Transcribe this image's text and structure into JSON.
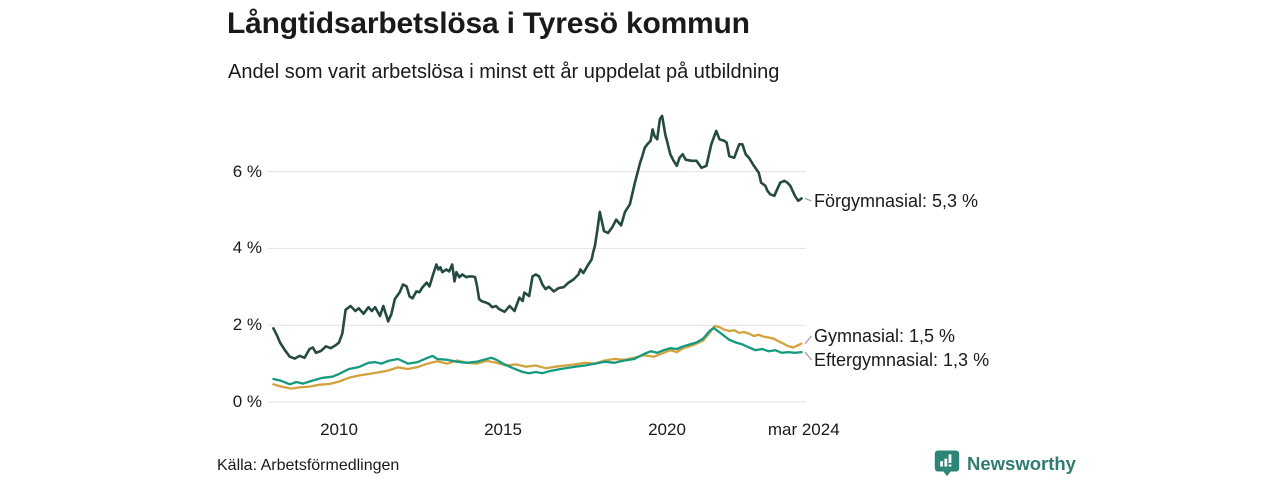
{
  "header": {
    "title": "Långtidsarbetslösa i Tyresö kommun",
    "subtitle": "Andel som varit arbetslösa i minst ett år uppdelat på utbildning"
  },
  "footer": {
    "source": "Källa: Arbetsförmedlingen",
    "brand": "Newsworthy"
  },
  "colors": {
    "forgymnasial": "#254a42",
    "gymnasial": "#d3a23e",
    "eftergymnasial": "#149a80",
    "gridline": "#e2e2e2",
    "connector": "#999999",
    "brand": "#2d8578"
  },
  "chart_data": {
    "type": "line",
    "title": "Långtidsarbetslösa i Tyresö kommun",
    "subtitle": "Andel som varit arbetslösa i minst ett år uppdelat på utbildning",
    "unit": "%",
    "x_range_years": [
      2008,
      2024.25
    ],
    "ylim": [
      0,
      7.6
    ],
    "grid": "horizontal",
    "legend_position": "right-end-labels",
    "y_axis": {
      "ticks": [
        {
          "value": 0,
          "label": "0 %"
        },
        {
          "value": 2,
          "label": "2 %"
        },
        {
          "value": 4,
          "label": "4 %"
        },
        {
          "value": 6,
          "label": "6 %"
        }
      ]
    },
    "x_axis": {
      "ticks": [
        {
          "year": 2010,
          "label": "2010"
        },
        {
          "year": 2015,
          "label": "2015"
        },
        {
          "year": 2020,
          "label": "2020"
        },
        {
          "year": 2024.17,
          "label": "mar 2024"
        }
      ]
    },
    "series": [
      {
        "name": "Förgymnasial",
        "label": "Förgymnasial: 5,3 %",
        "last_value": 5.3,
        "color_key": "forgymnasial",
        "points": [
          [
            2008.0,
            1.92
          ],
          [
            2008.1,
            1.75
          ],
          [
            2008.2,
            1.55
          ],
          [
            2008.35,
            1.35
          ],
          [
            2008.5,
            1.18
          ],
          [
            2008.65,
            1.13
          ],
          [
            2008.8,
            1.2
          ],
          [
            2008.95,
            1.15
          ],
          [
            2009.1,
            1.38
          ],
          [
            2009.2,
            1.42
          ],
          [
            2009.3,
            1.28
          ],
          [
            2009.45,
            1.33
          ],
          [
            2009.6,
            1.45
          ],
          [
            2009.75,
            1.4
          ],
          [
            2009.9,
            1.48
          ],
          [
            2010.0,
            1.55
          ],
          [
            2010.1,
            1.78
          ],
          [
            2010.2,
            2.4
          ],
          [
            2010.35,
            2.5
          ],
          [
            2010.5,
            2.37
          ],
          [
            2010.6,
            2.44
          ],
          [
            2010.75,
            2.3
          ],
          [
            2010.9,
            2.47
          ],
          [
            2011.0,
            2.37
          ],
          [
            2011.1,
            2.47
          ],
          [
            2011.25,
            2.24
          ],
          [
            2011.35,
            2.5
          ],
          [
            2011.5,
            2.1
          ],
          [
            2011.6,
            2.3
          ],
          [
            2011.7,
            2.68
          ],
          [
            2011.85,
            2.86
          ],
          [
            2011.95,
            3.06
          ],
          [
            2012.06,
            3.01
          ],
          [
            2012.15,
            2.75
          ],
          [
            2012.24,
            2.7
          ],
          [
            2012.36,
            2.88
          ],
          [
            2012.45,
            2.86
          ],
          [
            2012.55,
            2.99
          ],
          [
            2012.67,
            3.11
          ],
          [
            2012.76,
            3.01
          ],
          [
            2012.85,
            3.27
          ],
          [
            2012.97,
            3.58
          ],
          [
            2013.03,
            3.45
          ],
          [
            2013.09,
            3.51
          ],
          [
            2013.15,
            3.38
          ],
          [
            2013.27,
            3.45
          ],
          [
            2013.36,
            3.4
          ],
          [
            2013.45,
            3.58
          ],
          [
            2013.52,
            3.14
          ],
          [
            2013.58,
            3.38
          ],
          [
            2013.67,
            3.25
          ],
          [
            2013.76,
            3.32
          ],
          [
            2013.88,
            3.25
          ],
          [
            2013.97,
            3.27
          ],
          [
            2014.06,
            3.27
          ],
          [
            2014.15,
            3.25
          ],
          [
            2014.21,
            3.01
          ],
          [
            2014.27,
            2.68
          ],
          [
            2014.36,
            2.62
          ],
          [
            2014.48,
            2.59
          ],
          [
            2014.58,
            2.55
          ],
          [
            2014.67,
            2.47
          ],
          [
            2014.79,
            2.5
          ],
          [
            2014.88,
            2.42
          ],
          [
            2015.05,
            2.35
          ],
          [
            2015.2,
            2.5
          ],
          [
            2015.35,
            2.37
          ],
          [
            2015.5,
            2.72
          ],
          [
            2015.6,
            2.63
          ],
          [
            2015.65,
            2.85
          ],
          [
            2015.8,
            2.76
          ],
          [
            2015.9,
            3.27
          ],
          [
            2016.0,
            3.32
          ],
          [
            2016.1,
            3.27
          ],
          [
            2016.2,
            3.06
          ],
          [
            2016.3,
            2.94
          ],
          [
            2016.4,
            3.0
          ],
          [
            2016.55,
            2.88
          ],
          [
            2016.7,
            2.97
          ],
          [
            2016.85,
            2.99
          ],
          [
            2017.0,
            3.11
          ],
          [
            2017.15,
            3.19
          ],
          [
            2017.3,
            3.32
          ],
          [
            2017.36,
            3.45
          ],
          [
            2017.45,
            3.36
          ],
          [
            2017.6,
            3.58
          ],
          [
            2017.7,
            3.71
          ],
          [
            2017.75,
            3.9
          ],
          [
            2017.8,
            4.05
          ],
          [
            2017.88,
            4.5
          ],
          [
            2017.95,
            4.95
          ],
          [
            2018.08,
            4.45
          ],
          [
            2018.2,
            4.4
          ],
          [
            2018.33,
            4.55
          ],
          [
            2018.45,
            4.75
          ],
          [
            2018.6,
            4.6
          ],
          [
            2018.72,
            4.95
          ],
          [
            2018.87,
            5.15
          ],
          [
            2019.02,
            5.71
          ],
          [
            2019.18,
            6.23
          ],
          [
            2019.25,
            6.41
          ],
          [
            2019.32,
            6.62
          ],
          [
            2019.4,
            6.71
          ],
          [
            2019.5,
            6.8
          ],
          [
            2019.56,
            7.1
          ],
          [
            2019.62,
            6.93
          ],
          [
            2019.7,
            6.84
          ],
          [
            2019.78,
            7.36
          ],
          [
            2019.85,
            7.45
          ],
          [
            2019.95,
            6.95
          ],
          [
            2020.0,
            6.8
          ],
          [
            2020.1,
            6.45
          ],
          [
            2020.2,
            6.28
          ],
          [
            2020.3,
            6.15
          ],
          [
            2020.38,
            6.36
          ],
          [
            2020.48,
            6.45
          ],
          [
            2020.57,
            6.31
          ],
          [
            2020.75,
            6.28
          ],
          [
            2020.9,
            6.28
          ],
          [
            2021.05,
            6.1
          ],
          [
            2021.2,
            6.15
          ],
          [
            2021.35,
            6.71
          ],
          [
            2021.5,
            7.06
          ],
          [
            2021.6,
            6.84
          ],
          [
            2021.75,
            6.8
          ],
          [
            2021.82,
            6.75
          ],
          [
            2021.9,
            6.4
          ],
          [
            2022.05,
            6.36
          ],
          [
            2022.2,
            6.71
          ],
          [
            2022.3,
            6.71
          ],
          [
            2022.4,
            6.45
          ],
          [
            2022.5,
            6.36
          ],
          [
            2022.65,
            6.15
          ],
          [
            2022.8,
            5.97
          ],
          [
            2022.87,
            5.71
          ],
          [
            2023.0,
            5.63
          ],
          [
            2023.06,
            5.5
          ],
          [
            2023.15,
            5.41
          ],
          [
            2023.27,
            5.37
          ],
          [
            2023.36,
            5.54
          ],
          [
            2023.45,
            5.71
          ],
          [
            2023.58,
            5.76
          ],
          [
            2023.67,
            5.71
          ],
          [
            2023.76,
            5.63
          ],
          [
            2023.9,
            5.37
          ],
          [
            2024.0,
            5.24
          ],
          [
            2024.1,
            5.3
          ]
        ]
      },
      {
        "name": "Gymnasial",
        "label": "Gymnasial: 1,5 %",
        "last_value": 1.5,
        "color_key": "gymnasial",
        "points": [
          [
            2008.0,
            0.46
          ],
          [
            2008.25,
            0.4
          ],
          [
            2008.55,
            0.35
          ],
          [
            2008.8,
            0.38
          ],
          [
            2009.1,
            0.4
          ],
          [
            2009.4,
            0.45
          ],
          [
            2009.7,
            0.47
          ],
          [
            2010.0,
            0.53
          ],
          [
            2010.3,
            0.63
          ],
          [
            2010.6,
            0.69
          ],
          [
            2010.9,
            0.73
          ],
          [
            2011.2,
            0.77
          ],
          [
            2011.5,
            0.82
          ],
          [
            2011.8,
            0.9
          ],
          [
            2012.1,
            0.86
          ],
          [
            2012.4,
            0.91
          ],
          [
            2012.7,
            1.0
          ],
          [
            2013.0,
            1.06
          ],
          [
            2013.3,
            1.0
          ],
          [
            2013.6,
            1.08
          ],
          [
            2013.9,
            1.02
          ],
          [
            2014.2,
            1.0
          ],
          [
            2014.5,
            1.07
          ],
          [
            2014.8,
            1.02
          ],
          [
            2015.1,
            0.95
          ],
          [
            2015.4,
            0.98
          ],
          [
            2015.7,
            0.92
          ],
          [
            2016.0,
            0.95
          ],
          [
            2016.3,
            0.88
          ],
          [
            2016.6,
            0.92
          ],
          [
            2016.9,
            0.95
          ],
          [
            2017.2,
            0.98
          ],
          [
            2017.5,
            1.02
          ],
          [
            2017.8,
            1.0
          ],
          [
            2018.1,
            1.08
          ],
          [
            2018.4,
            1.12
          ],
          [
            2018.7,
            1.1
          ],
          [
            2019.0,
            1.15
          ],
          [
            2019.3,
            1.22
          ],
          [
            2019.6,
            1.18
          ],
          [
            2019.9,
            1.28
          ],
          [
            2020.1,
            1.35
          ],
          [
            2020.3,
            1.3
          ],
          [
            2020.5,
            1.4
          ],
          [
            2020.7,
            1.45
          ],
          [
            2020.9,
            1.52
          ],
          [
            2021.1,
            1.6
          ],
          [
            2021.3,
            1.8
          ],
          [
            2021.45,
            1.98
          ],
          [
            2021.6,
            1.95
          ],
          [
            2021.75,
            1.88
          ],
          [
            2021.9,
            1.85
          ],
          [
            2022.05,
            1.87
          ],
          [
            2022.2,
            1.8
          ],
          [
            2022.35,
            1.82
          ],
          [
            2022.5,
            1.78
          ],
          [
            2022.65,
            1.72
          ],
          [
            2022.8,
            1.75
          ],
          [
            2022.95,
            1.7
          ],
          [
            2023.1,
            1.68
          ],
          [
            2023.25,
            1.65
          ],
          [
            2023.4,
            1.58
          ],
          [
            2023.55,
            1.52
          ],
          [
            2023.7,
            1.45
          ],
          [
            2023.85,
            1.42
          ],
          [
            2024.0,
            1.48
          ],
          [
            2024.1,
            1.52
          ]
        ]
      },
      {
        "name": "Eftergymnasial",
        "label": "Eftergymnasial: 1,3 %",
        "last_value": 1.3,
        "color_key": "eftergymnasial",
        "points": [
          [
            2008.0,
            0.6
          ],
          [
            2008.25,
            0.55
          ],
          [
            2008.5,
            0.46
          ],
          [
            2008.7,
            0.52
          ],
          [
            2008.9,
            0.48
          ],
          [
            2009.2,
            0.56
          ],
          [
            2009.5,
            0.63
          ],
          [
            2009.8,
            0.66
          ],
          [
            2010.0,
            0.73
          ],
          [
            2010.3,
            0.86
          ],
          [
            2010.6,
            0.91
          ],
          [
            2010.9,
            1.02
          ],
          [
            2011.1,
            1.04
          ],
          [
            2011.3,
            1.0
          ],
          [
            2011.5,
            1.07
          ],
          [
            2011.8,
            1.12
          ],
          [
            2012.1,
            1.0
          ],
          [
            2012.4,
            1.04
          ],
          [
            2012.7,
            1.15
          ],
          [
            2012.85,
            1.2
          ],
          [
            2013.0,
            1.12
          ],
          [
            2013.3,
            1.1
          ],
          [
            2013.6,
            1.05
          ],
          [
            2013.9,
            1.02
          ],
          [
            2014.2,
            1.05
          ],
          [
            2014.5,
            1.12
          ],
          [
            2014.65,
            1.15
          ],
          [
            2014.8,
            1.1
          ],
          [
            2015.0,
            1.0
          ],
          [
            2015.2,
            0.92
          ],
          [
            2015.4,
            0.85
          ],
          [
            2015.6,
            0.78
          ],
          [
            2015.8,
            0.75
          ],
          [
            2016.0,
            0.78
          ],
          [
            2016.2,
            0.75
          ],
          [
            2016.4,
            0.8
          ],
          [
            2016.7,
            0.85
          ],
          [
            2016.9,
            0.88
          ],
          [
            2017.2,
            0.92
          ],
          [
            2017.5,
            0.95
          ],
          [
            2017.8,
            1.0
          ],
          [
            2018.1,
            1.05
          ],
          [
            2018.4,
            1.02
          ],
          [
            2018.7,
            1.08
          ],
          [
            2019.0,
            1.12
          ],
          [
            2019.3,
            1.25
          ],
          [
            2019.5,
            1.32
          ],
          [
            2019.7,
            1.28
          ],
          [
            2019.9,
            1.35
          ],
          [
            2020.1,
            1.4
          ],
          [
            2020.3,
            1.38
          ],
          [
            2020.5,
            1.45
          ],
          [
            2020.7,
            1.5
          ],
          [
            2020.9,
            1.55
          ],
          [
            2021.1,
            1.65
          ],
          [
            2021.3,
            1.85
          ],
          [
            2021.42,
            1.93
          ],
          [
            2021.55,
            1.85
          ],
          [
            2021.7,
            1.75
          ],
          [
            2021.9,
            1.62
          ],
          [
            2022.1,
            1.55
          ],
          [
            2022.3,
            1.5
          ],
          [
            2022.5,
            1.42
          ],
          [
            2022.7,
            1.35
          ],
          [
            2022.9,
            1.38
          ],
          [
            2023.1,
            1.32
          ],
          [
            2023.3,
            1.35
          ],
          [
            2023.5,
            1.28
          ],
          [
            2023.7,
            1.3
          ],
          [
            2023.9,
            1.28
          ],
          [
            2024.1,
            1.3
          ]
        ]
      }
    ]
  }
}
